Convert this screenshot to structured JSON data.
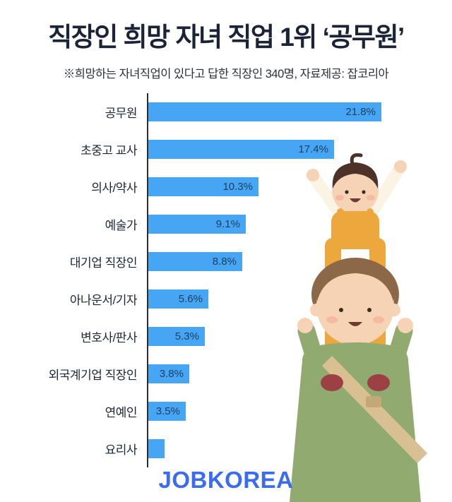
{
  "header": {
    "title": "직장인 희망 자녀 직업 1위 ‘공무원’",
    "subtitle": "※희망하는 자녀직업이 있다고 답한 직장인 340명, 자료제공: 잡코리아"
  },
  "chart_data": {
    "type": "bar",
    "orientation": "horizontal",
    "title": "직장인 희망 자녀 직업 1위 ‘공무원’",
    "xlabel": "",
    "ylabel": "",
    "xlim": [
      0,
      23
    ],
    "grid": false,
    "legend": false,
    "bar_color": "#47a6f3",
    "categories": [
      "공무원",
      "초중고 교사",
      "의사/약사",
      "예술가",
      "대기업 직장인",
      "아나운서/기자",
      "변호사/판사",
      "외국계기업 직장인",
      "연예인",
      "요리사"
    ],
    "values": [
      21.8,
      17.4,
      10.3,
      9.1,
      8.8,
      5.6,
      5.3,
      3.8,
      3.5,
      1.5
    ],
    "value_labels": [
      "21.8%",
      "17.4%",
      "10.3%",
      "9.1%",
      "8.8%",
      "5.6%",
      "5.3%",
      "3.8%",
      "3.5%",
      ""
    ]
  },
  "footer": {
    "logo_text": "JOBKOREA",
    "logo_color": "#3b6bf0"
  }
}
